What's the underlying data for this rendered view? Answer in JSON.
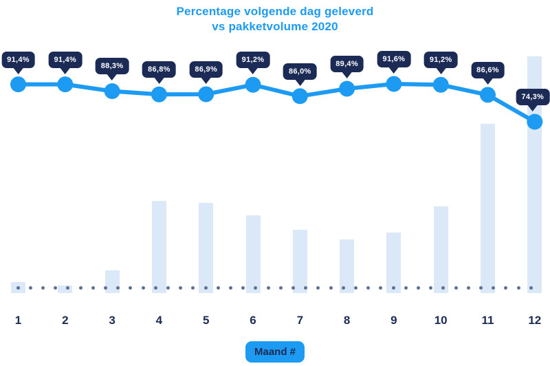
{
  "title": {
    "line1": "Percentage volgende dag geleverd",
    "line2": "vs pakketvolume 2020"
  },
  "x_axis": {
    "badge_label": "Maand #",
    "months": [
      "1",
      "2",
      "3",
      "4",
      "5",
      "6",
      "7",
      "8",
      "9",
      "10",
      "11",
      "12"
    ]
  },
  "colors": {
    "accent_blue": "#1d9af2",
    "navy": "#1b2b55",
    "bar_fill": "#dbe8f7",
    "baseline_dot": "#5f7193",
    "badge_text": "#ffffff"
  },
  "chart_data": {
    "type": "line+bar",
    "title": "Percentage volgende dag geleverd vs pakketvolume 2020",
    "xlabel": "Maand #",
    "categories": [
      1,
      2,
      3,
      4,
      5,
      6,
      7,
      8,
      9,
      10,
      11,
      12
    ],
    "legend": "none",
    "y_axis_visible": false,
    "series": [
      {
        "name": "Percentage volgende dag geleverd",
        "type": "line",
        "unit": "%",
        "values": [
          91.4,
          91.4,
          88.3,
          86.8,
          86.9,
          91.2,
          86.0,
          89.4,
          91.6,
          91.2,
          86.6,
          74.3
        ],
        "labels": [
          "91,4%",
          "91,4%",
          "88,3%",
          "86,8%",
          "86,9%",
          "91,2%",
          "86,0%",
          "89,4%",
          "91,6%",
          "91,2%",
          "86,6%",
          "74,3%"
        ]
      },
      {
        "name": "Pakketvolume 2020",
        "type": "bar",
        "unit": "% of max month (estimated from bar heights, no y-axis shown)",
        "values": [
          4.7,
          3.2,
          9.6,
          39.0,
          38.1,
          32.8,
          26.7,
          22.7,
          25.6,
          36.6,
          71.5,
          100
        ]
      }
    ]
  }
}
